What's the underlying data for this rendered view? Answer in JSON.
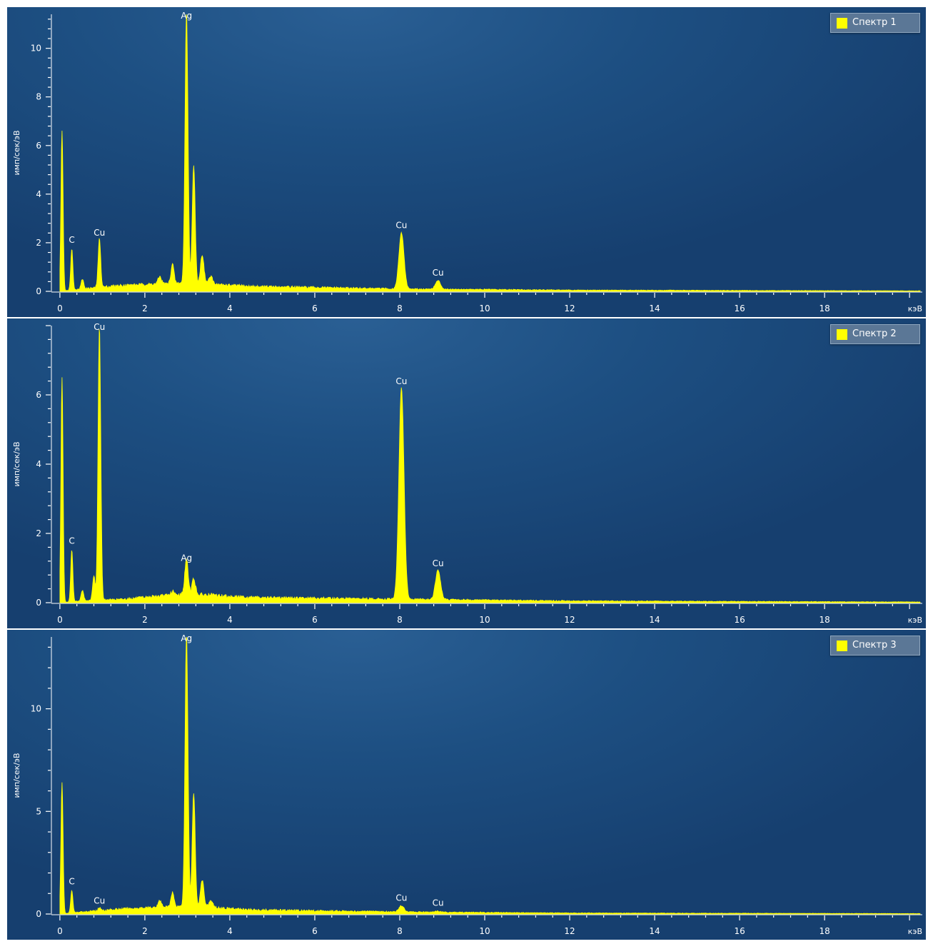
{
  "chart_data": [
    {
      "type": "line",
      "legend": "Спектр 1",
      "ylabel": "имп/сек/эВ",
      "xlabel": "кэВ",
      "xlim": [
        -0.2,
        20.3
      ],
      "ylim": [
        0,
        11.4
      ],
      "xticks": [
        0,
        2,
        4,
        6,
        8,
        10,
        12,
        14,
        16,
        18
      ],
      "yticks": [
        0,
        2,
        4,
        6,
        8,
        10
      ],
      "color": "#ffff00",
      "peaks": [
        {
          "x": 0.05,
          "y": 6.6,
          "w": 0.025
        },
        {
          "x": 0.28,
          "y": 1.7,
          "w": 0.025
        },
        {
          "x": 0.53,
          "y": 0.4,
          "w": 0.03
        },
        {
          "x": 0.93,
          "y": 2.0,
          "w": 0.03
        },
        {
          "x": 2.35,
          "y": 0.3,
          "w": 0.04
        },
        {
          "x": 2.65,
          "y": 0.8,
          "w": 0.035
        },
        {
          "x": 2.98,
          "y": 11.2,
          "w": 0.035
        },
        {
          "x": 3.15,
          "y": 4.8,
          "w": 0.035
        },
        {
          "x": 3.35,
          "y": 1.2,
          "w": 0.04
        },
        {
          "x": 3.55,
          "y": 0.3,
          "w": 0.05
        },
        {
          "x": 8.04,
          "y": 2.3,
          "w": 0.06
        },
        {
          "x": 8.9,
          "y": 0.35,
          "w": 0.06
        }
      ],
      "background": [
        [
          0,
          0
        ],
        [
          0.5,
          0.1
        ],
        [
          1.5,
          0.25
        ],
        [
          3,
          0.35
        ],
        [
          4.5,
          0.2
        ],
        [
          8,
          0.1
        ],
        [
          12,
          0.05
        ],
        [
          20,
          0.02
        ]
      ],
      "annotations": [
        {
          "text": "Ag",
          "x": 2.98,
          "y": 11.2
        },
        {
          "text": "C",
          "x": 0.28,
          "y": 1.7
        },
        {
          "text": "Cu",
          "x": 0.93,
          "y": 2.0
        },
        {
          "text": "Cu",
          "x": 8.04,
          "y": 2.3
        },
        {
          "text": "Cu",
          "x": 8.9,
          "y": 0.35
        }
      ]
    },
    {
      "type": "line",
      "legend": "Спектр 2",
      "ylabel": "имп/сек/эВ",
      "xlabel": "кэВ",
      "xlim": [
        -0.2,
        20.3
      ],
      "ylim": [
        0,
        8.0
      ],
      "xticks": [
        0,
        2,
        4,
        6,
        8,
        10,
        12,
        14,
        16,
        18
      ],
      "yticks": [
        0,
        2,
        4,
        6
      ],
      "color": "#ffff00",
      "peaks": [
        {
          "x": 0.05,
          "y": 6.5,
          "w": 0.025
        },
        {
          "x": 0.28,
          "y": 1.5,
          "w": 0.025
        },
        {
          "x": 0.53,
          "y": 0.3,
          "w": 0.03
        },
        {
          "x": 0.8,
          "y": 0.7,
          "w": 0.03
        },
        {
          "x": 0.93,
          "y": 7.9,
          "w": 0.032
        },
        {
          "x": 2.65,
          "y": 0.1,
          "w": 0.04
        },
        {
          "x": 2.98,
          "y": 1.0,
          "w": 0.04
        },
        {
          "x": 3.15,
          "y": 0.45,
          "w": 0.04
        },
        {
          "x": 8.04,
          "y": 6.1,
          "w": 0.06
        },
        {
          "x": 8.9,
          "y": 0.85,
          "w": 0.06
        }
      ],
      "background": [
        [
          0,
          0
        ],
        [
          0.5,
          0.05
        ],
        [
          1.5,
          0.1
        ],
        [
          3,
          0.25
        ],
        [
          4.5,
          0.15
        ],
        [
          8,
          0.1
        ],
        [
          12,
          0.05
        ],
        [
          20,
          0.02
        ]
      ],
      "annotations": [
        {
          "text": "Cu",
          "x": 0.93,
          "y": 7.9
        },
        {
          "text": "C",
          "x": 0.28,
          "y": 1.5
        },
        {
          "text": "Ag",
          "x": 2.98,
          "y": 1.0
        },
        {
          "text": "Cu",
          "x": 8.04,
          "y": 6.1
        },
        {
          "text": "Cu",
          "x": 8.9,
          "y": 0.85
        }
      ]
    },
    {
      "type": "line",
      "legend": "Спектр 3",
      "ylabel": "имп/сек/эВ",
      "xlabel": "кэВ",
      "xlim": [
        -0.2,
        20.3
      ],
      "ylim": [
        0,
        13.5
      ],
      "xticks": [
        0,
        2,
        4,
        6,
        8,
        10,
        12,
        14,
        16,
        18
      ],
      "yticks": [
        0,
        5,
        10
      ],
      "color": "#ffff00",
      "peaks": [
        {
          "x": 0.05,
          "y": 6.4,
          "w": 0.025
        },
        {
          "x": 0.28,
          "y": 1.1,
          "w": 0.025
        },
        {
          "x": 0.93,
          "y": 0.15,
          "w": 0.03
        },
        {
          "x": 2.35,
          "y": 0.3,
          "w": 0.04
        },
        {
          "x": 2.65,
          "y": 0.7,
          "w": 0.035
        },
        {
          "x": 2.98,
          "y": 13.3,
          "w": 0.035
        },
        {
          "x": 3.15,
          "y": 5.5,
          "w": 0.035
        },
        {
          "x": 3.35,
          "y": 1.3,
          "w": 0.04
        },
        {
          "x": 3.55,
          "y": 0.3,
          "w": 0.05
        },
        {
          "x": 8.04,
          "y": 0.3,
          "w": 0.06
        },
        {
          "x": 8.9,
          "y": 0.05,
          "w": 0.06
        }
      ],
      "background": [
        [
          0,
          0
        ],
        [
          0.5,
          0.1
        ],
        [
          1.5,
          0.25
        ],
        [
          3,
          0.4
        ],
        [
          4.5,
          0.2
        ],
        [
          8,
          0.1
        ],
        [
          12,
          0.05
        ],
        [
          20,
          0.02
        ]
      ],
      "annotations": [
        {
          "text": "Ag",
          "x": 2.98,
          "y": 13.3
        },
        {
          "text": "C",
          "x": 0.28,
          "y": 1.1
        },
        {
          "text": "Cu",
          "x": 0.93,
          "y": 0.15
        },
        {
          "text": "Cu",
          "x": 8.04,
          "y": 0.3
        },
        {
          "text": "Cu",
          "x": 8.9,
          "y": 0.05
        }
      ]
    }
  ]
}
